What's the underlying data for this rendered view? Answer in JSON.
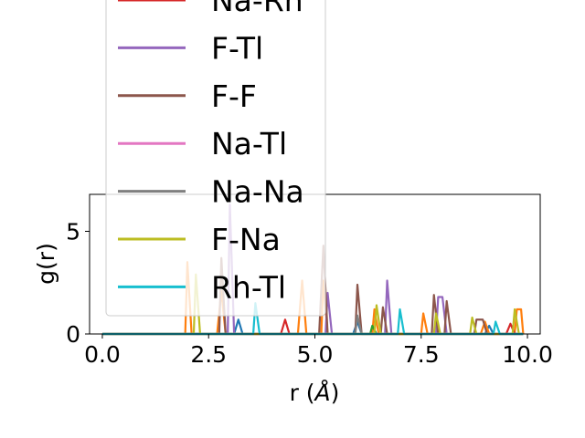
{
  "chart_data": {
    "type": "line",
    "xlabel_main": "r (",
    "xlabel_unit": "Å",
    "xlabel_end": ")",
    "ylabel": "g(r)",
    "xlim": [
      -0.3,
      10.3
    ],
    "ylim": [
      0,
      6.8
    ],
    "x_ticks": [
      {
        "value": 0.0,
        "label": "0.0"
      },
      {
        "value": 2.5,
        "label": "2.5"
      },
      {
        "value": 5.0,
        "label": "5.0"
      },
      {
        "value": 7.5,
        "label": "7.5"
      },
      {
        "value": 10.0,
        "label": "10.0"
      }
    ],
    "y_ticks": [
      {
        "value": 0,
        "label": "0"
      },
      {
        "value": 5,
        "label": "5"
      }
    ],
    "grid": false,
    "legend_position": "upper-left",
    "series": [
      {
        "name": "",
        "color": "#1f77b4",
        "points": [
          [
            0,
            0
          ],
          [
            3.1,
            0
          ],
          [
            3.2,
            0.7
          ],
          [
            3.3,
            0
          ],
          [
            5.9,
            0
          ],
          [
            6.0,
            0.6
          ],
          [
            6.1,
            0
          ],
          [
            9.0,
            0
          ],
          [
            9.1,
            0.4
          ],
          [
            9.2,
            0
          ],
          [
            9.9,
            0
          ]
        ]
      },
      {
        "name": "",
        "color": "#ff7f0e",
        "points": [
          [
            0,
            0
          ],
          [
            1.95,
            0
          ],
          [
            2.0,
            3.5
          ],
          [
            2.1,
            0
          ],
          [
            2.7,
            0
          ],
          [
            2.8,
            2.1
          ],
          [
            2.9,
            0
          ],
          [
            4.6,
            0
          ],
          [
            4.7,
            2.6
          ],
          [
            4.8,
            0
          ],
          [
            5.15,
            0
          ],
          [
            5.2,
            2.6
          ],
          [
            5.3,
            0
          ],
          [
            6.35,
            0
          ],
          [
            6.4,
            1.2
          ],
          [
            6.5,
            0
          ],
          [
            7.5,
            0
          ],
          [
            7.55,
            1.0
          ],
          [
            7.65,
            0
          ],
          [
            8.9,
            0
          ],
          [
            9.0,
            0.6
          ],
          [
            9.1,
            0
          ],
          [
            9.7,
            0
          ],
          [
            9.75,
            1.2
          ],
          [
            9.85,
            1.2
          ],
          [
            9.9,
            0
          ]
        ]
      },
      {
        "name": "",
        "color": "#2ca02c",
        "points": [
          [
            0,
            0
          ],
          [
            6.3,
            0
          ],
          [
            6.35,
            0.4
          ],
          [
            6.45,
            0
          ],
          [
            9.9,
            0
          ]
        ]
      },
      {
        "name": "Na-Rh",
        "color": "#d62728",
        "points": [
          [
            0,
            0
          ],
          [
            4.2,
            0
          ],
          [
            4.3,
            0.7
          ],
          [
            4.4,
            0
          ],
          [
            9.5,
            0
          ],
          [
            9.6,
            0.5
          ],
          [
            9.7,
            0
          ],
          [
            9.9,
            0
          ]
        ]
      },
      {
        "name": "F-Tl",
        "color": "#9467bd",
        "points": [
          [
            0,
            0
          ],
          [
            2.95,
            0
          ],
          [
            3.0,
            6.3
          ],
          [
            3.1,
            0
          ],
          [
            5.25,
            0
          ],
          [
            5.3,
            2.0
          ],
          [
            5.4,
            0
          ],
          [
            6.65,
            0
          ],
          [
            6.7,
            2.6
          ],
          [
            6.8,
            0
          ],
          [
            7.85,
            0
          ],
          [
            7.9,
            1.8
          ],
          [
            8.0,
            1.8
          ],
          [
            8.1,
            0
          ],
          [
            9.9,
            0
          ]
        ]
      },
      {
        "name": "F-F",
        "color": "#8c564b",
        "points": [
          [
            0,
            0
          ],
          [
            2.75,
            0
          ],
          [
            2.8,
            3.7
          ],
          [
            2.9,
            0
          ],
          [
            5.1,
            0
          ],
          [
            5.2,
            4.3
          ],
          [
            5.3,
            0
          ],
          [
            5.95,
            0
          ],
          [
            6.0,
            2.4
          ],
          [
            6.1,
            0
          ],
          [
            6.55,
            0
          ],
          [
            6.6,
            1.3
          ],
          [
            6.7,
            0
          ],
          [
            7.75,
            0
          ],
          [
            7.8,
            1.9
          ],
          [
            7.9,
            0
          ],
          [
            8.05,
            0
          ],
          [
            8.1,
            1.6
          ],
          [
            8.2,
            0
          ],
          [
            8.75,
            0
          ],
          [
            8.8,
            0.7
          ],
          [
            8.95,
            0.7
          ],
          [
            9.05,
            0
          ],
          [
            9.9,
            0
          ]
        ]
      },
      {
        "name": "Na-Tl",
        "color": "#e377c2",
        "points": [
          [
            0,
            0
          ],
          [
            9.9,
            0
          ]
        ]
      },
      {
        "name": "Na-Na",
        "color": "#7f7f7f",
        "points": [
          [
            0,
            0
          ],
          [
            5.95,
            0
          ],
          [
            6.0,
            0.9
          ],
          [
            6.1,
            0
          ],
          [
            9.9,
            0
          ]
        ]
      },
      {
        "name": "F-Na",
        "color": "#bcbd22",
        "points": [
          [
            0,
            0
          ],
          [
            2.15,
            0
          ],
          [
            2.2,
            2.9
          ],
          [
            2.3,
            0
          ],
          [
            6.4,
            0
          ],
          [
            6.45,
            1.4
          ],
          [
            6.55,
            0
          ],
          [
            7.8,
            0
          ],
          [
            7.85,
            1.0
          ],
          [
            7.95,
            0
          ],
          [
            8.65,
            0
          ],
          [
            8.7,
            0.8
          ],
          [
            8.8,
            0
          ],
          [
            9.65,
            0
          ],
          [
            9.7,
            1.2
          ],
          [
            9.8,
            0
          ],
          [
            9.9,
            0
          ]
        ]
      },
      {
        "name": "Rh-Tl",
        "color": "#17becf",
        "points": [
          [
            0,
            0
          ],
          [
            3.55,
            0
          ],
          [
            3.6,
            1.5
          ],
          [
            3.7,
            0
          ],
          [
            6.95,
            0
          ],
          [
            7.0,
            1.2
          ],
          [
            7.1,
            0
          ],
          [
            9.2,
            0
          ],
          [
            9.25,
            0.6
          ],
          [
            9.35,
            0
          ],
          [
            9.9,
            0
          ]
        ]
      }
    ]
  }
}
